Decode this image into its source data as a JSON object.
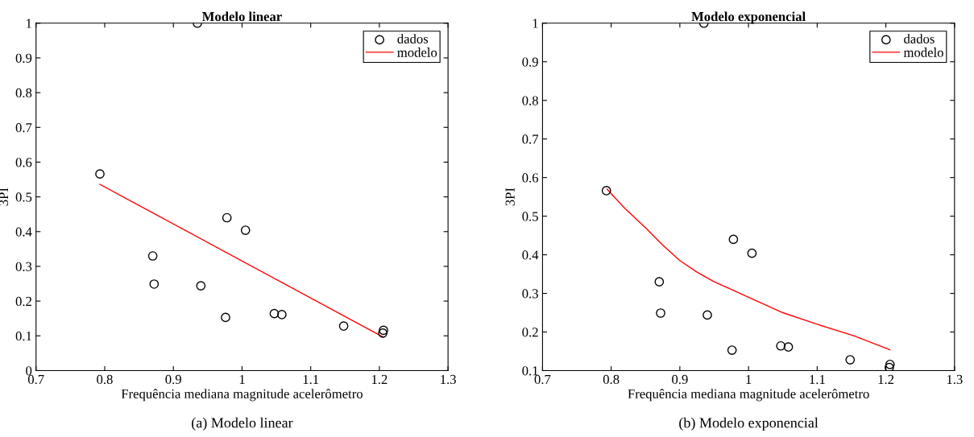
{
  "chart_data": [
    {
      "type": "scatter",
      "title": "Modelo linear",
      "xlabel": "Frequência mediana magnitude acelerômetro",
      "ylabel": "3PI",
      "annotations": [
        "(a) Modelo linear"
      ],
      "x": [
        0.793,
        0.935,
        0.87,
        0.872,
        0.94,
        0.978,
        1.005,
        0.976,
        1.047,
        1.058,
        1.148,
        1.206,
        1.205
      ],
      "series": [
        {
          "name": "dados",
          "marker": "circle",
          "color": "#000000",
          "values": [
            0.566,
            1.0,
            0.33,
            0.249,
            0.244,
            0.44,
            0.404,
            0.153,
            0.164,
            0.161,
            0.128,
            0.116,
            0.108
          ]
        },
        {
          "name": "modelo",
          "type": "line",
          "color": "#ff0000",
          "x": [
            0.793,
            1.206
          ],
          "values": [
            0.536,
            0.096
          ]
        }
      ],
      "xlim": [
        0.7,
        1.3
      ],
      "xticks": [
        0.7,
        0.8,
        0.9,
        1,
        1.1,
        1.2,
        1.3
      ],
      "ylim": [
        0,
        1
      ],
      "yticks": [
        0,
        0.1,
        0.2,
        0.3,
        0.4,
        0.5,
        0.6,
        0.7,
        0.8,
        0.9,
        1
      ],
      "legend": "top right",
      "grid": false
    },
    {
      "type": "scatter",
      "title": "Modelo exponencial",
      "xlabel": "Frequência mediana magnitude acelerômetro",
      "ylabel": "3PI",
      "annotations": [
        "(b) Modelo exponencial"
      ],
      "x": [
        0.793,
        0.935,
        0.87,
        0.872,
        0.94,
        0.978,
        1.005,
        0.976,
        1.047,
        1.058,
        1.148,
        1.206,
        1.205
      ],
      "series": [
        {
          "name": "dados",
          "marker": "circle",
          "color": "#000000",
          "values": [
            0.566,
            1.0,
            0.33,
            0.249,
            0.244,
            0.44,
            0.404,
            0.153,
            0.164,
            0.161,
            0.128,
            0.116,
            0.108
          ]
        },
        {
          "name": "modelo",
          "type": "line",
          "color": "#ff0000",
          "x": [
            0.794,
            0.82,
            0.85,
            0.875,
            0.9,
            0.925,
            0.95,
            0.975,
            1.0,
            1.05,
            1.1,
            1.154,
            1.206
          ],
          "values": [
            0.57,
            0.52,
            0.47,
            0.425,
            0.385,
            0.355,
            0.33,
            0.31,
            0.29,
            0.25,
            0.22,
            0.19,
            0.154
          ]
        }
      ],
      "xlim": [
        0.7,
        1.3
      ],
      "xticks": [
        0.7,
        0.8,
        0.9,
        1,
        1.1,
        1.2,
        1.3
      ],
      "ylim": [
        0.1,
        1
      ],
      "yticks": [
        0.1,
        0.2,
        0.3,
        0.4,
        0.5,
        0.6,
        0.7,
        0.8,
        0.9,
        1
      ],
      "legend": "top right",
      "grid": false
    }
  ]
}
